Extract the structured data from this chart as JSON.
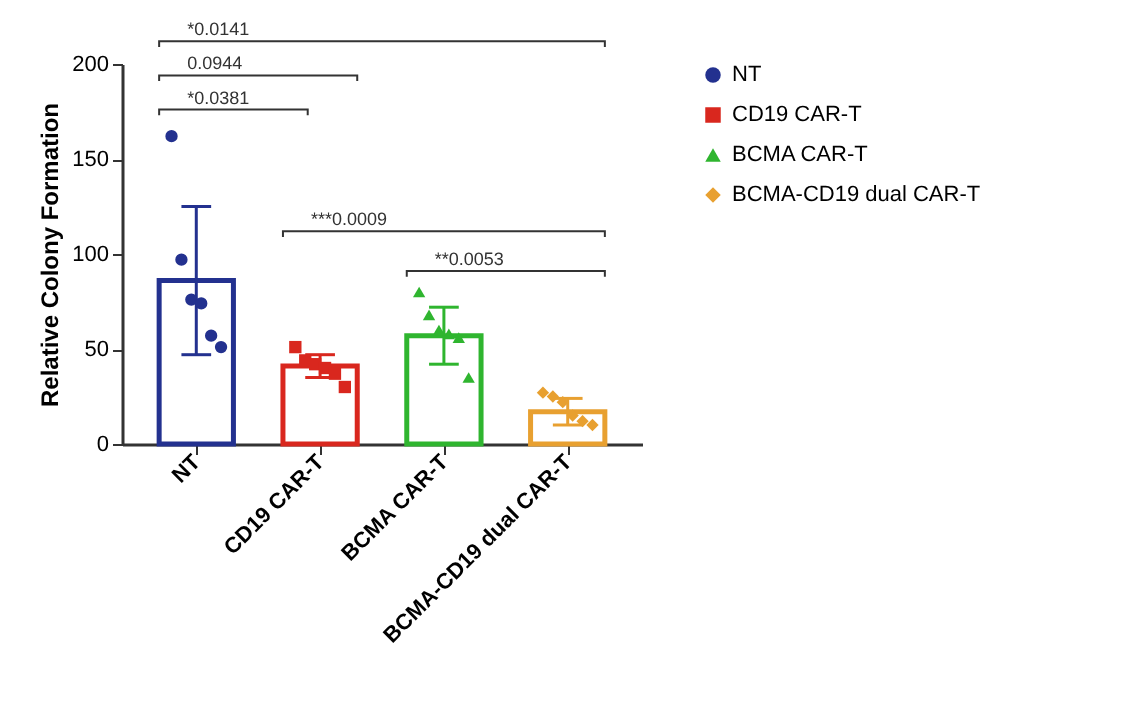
{
  "chart_data": {
    "type": "bar",
    "ylabel": "Relative Colony Formation",
    "categories": [
      "NT",
      "CD19 CAR-T",
      "BCMA CAR-T",
      "BCMA-CD19 dual CAR-T"
    ],
    "values": [
      86,
      41,
      57,
      17
    ],
    "colors": [
      "#23318f",
      "#d9271e",
      "#2fb52f",
      "#e8a030"
    ],
    "errors": [
      [
        47,
        125
      ],
      [
        35,
        47
      ],
      [
        42,
        72
      ],
      [
        10,
        24
      ]
    ],
    "ylim": [
      0,
      200
    ],
    "yticks": [
      0,
      50,
      100,
      150,
      200
    ],
    "grid": false,
    "legend": "top right",
    "annotations": [
      "*0.0141",
      "0.0944",
      "*0.0381",
      "***0.0009",
      "**0.0053"
    ],
    "series": [
      {
        "type": "scatter",
        "name": "NT",
        "color": "#23318f",
        "marker": "circle",
        "x": [
          "NT",
          "NT",
          "NT",
          "NT",
          "NT",
          "NT"
        ],
        "values": [
          162,
          97,
          76,
          74,
          57,
          51
        ]
      },
      {
        "type": "scatter",
        "name": "CD19 CAR-T",
        "color": "#d9271e",
        "marker": "square",
        "x": [
          "CD19 CAR-T",
          "CD19 CAR-T",
          "CD19 CAR-T",
          "CD19 CAR-T",
          "CD19 CAR-T",
          "CD19 CAR-T"
        ],
        "values": [
          51,
          44,
          42,
          40,
          37,
          30
        ]
      },
      {
        "type": "scatter",
        "name": "BCMA CAR-T",
        "color": "#2fb52f",
        "marker": "triangle",
        "x": [
          "BCMA CAR-T",
          "BCMA CAR-T",
          "BCMA CAR-T",
          "BCMA CAR-T",
          "BCMA CAR-T",
          "BCMA CAR-T"
        ],
        "values": [
          80,
          68,
          60,
          58,
          56,
          35
        ]
      },
      {
        "type": "scatter",
        "name": "BCMA-CD19 dual CAR-T",
        "color": "#e8a030",
        "marker": "diamond",
        "x": [
          "BCMA-CD19 dual CAR-T",
          "BCMA-CD19 dual CAR-T",
          "BCMA-CD19 dual CAR-T",
          "BCMA-CD19 dual CAR-T",
          "BCMA-CD19 dual CAR-T",
          "BCMA-CD19 dual CAR-T"
        ],
        "values": [
          27,
          25,
          22,
          15,
          12,
          10
        ]
      }
    ]
  }
}
